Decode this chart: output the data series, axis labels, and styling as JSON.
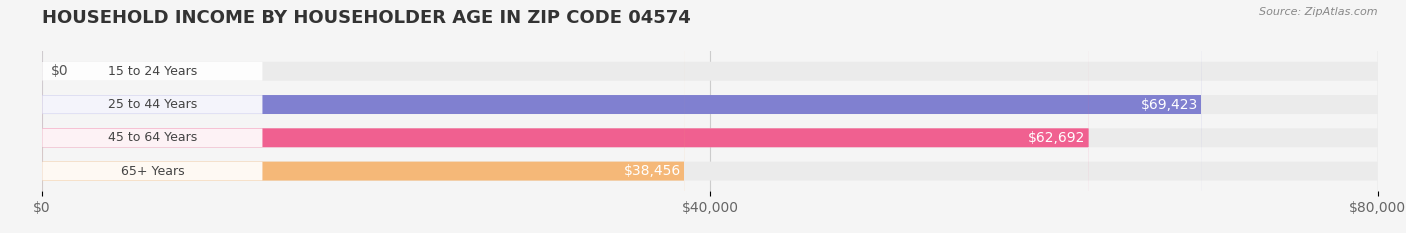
{
  "title": "HOUSEHOLD INCOME BY HOUSEHOLDER AGE IN ZIP CODE 04574",
  "source": "Source: ZipAtlas.com",
  "categories": [
    "15 to 24 Years",
    "25 to 44 Years",
    "45 to 64 Years",
    "65+ Years"
  ],
  "values": [
    0,
    69423,
    62692,
    38456
  ],
  "bar_colors": [
    "#5ecfcf",
    "#8080d0",
    "#f06090",
    "#f5b878"
  ],
  "label_colors": [
    "#555555",
    "#ffffff",
    "#ffffff",
    "#555555"
  ],
  "bar_height": 0.55,
  "xlim": [
    0,
    80000
  ],
  "xticks": [
    0,
    40000,
    80000
  ],
  "xtick_labels": [
    "$0",
    "$40,000",
    "$80,000"
  ],
  "background_color": "#f5f5f5",
  "bar_bg_color": "#ebebeb",
  "title_fontsize": 13,
  "tick_fontsize": 10,
  "label_fontsize": 9,
  "value_labels": [
    "$0",
    "$69,423",
    "$62,692",
    "$38,456"
  ]
}
